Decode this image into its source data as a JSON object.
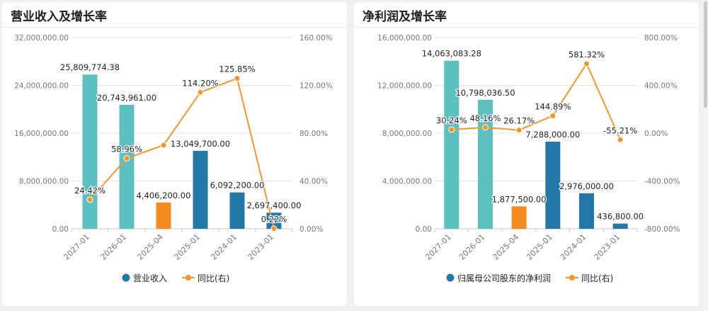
{
  "colors": {
    "bar_main": "#2378a8",
    "bar_teal": "#5cc0c0",
    "bar_orange": "#f58b1f",
    "line": "#f0962e"
  },
  "chart_data": [
    {
      "type": "bar",
      "title": "营业收入及增长率",
      "categories": [
        "2027-01",
        "2026-01",
        "2025-04",
        "2025-01",
        "2024-01",
        "2023-01"
      ],
      "bar_colors": [
        "#5cc0c0",
        "#5cc0c0",
        "#f58b1f",
        "#2378a8",
        "#2378a8",
        "#2378a8"
      ],
      "series": [
        {
          "name": "营业收入",
          "type": "bar",
          "axis": "left",
          "values": [
            25809774.38,
            20743961.0,
            4406200.0,
            13049700.0,
            6092200.0,
            2697400.0
          ],
          "labels": [
            "25,809,774.38",
            "20,743,961.00",
            "4,406,200.00",
            "13,049,700.00",
            "6,092,200.00",
            "2,697,400.00"
          ]
        },
        {
          "name": "同比(右)",
          "type": "line",
          "axis": "right",
          "values": [
            24.42,
            58.96,
            70.0,
            114.2,
            125.85,
            0.22
          ],
          "labels": [
            "24.42%",
            "58.96%",
            "",
            "114.20%",
            "125.85%",
            "0.22%"
          ]
        }
      ],
      "ylim_left": [
        0,
        32000000
      ],
      "yticks_left": [
        "0.00",
        "8,000,000.00",
        "16,000,000.00",
        "24,000,000.00",
        "32,000,000.00"
      ],
      "ylim_right": [
        0,
        160
      ],
      "yticks_right": [
        "0.00%",
        "40.00%",
        "80.00%",
        "120.00%",
        "160.00%"
      ],
      "legend": [
        "营业收入",
        "同比(右)"
      ],
      "legend_position": "bottom",
      "grid": true
    },
    {
      "type": "bar",
      "title": "净利润及增长率",
      "categories": [
        "2027-01",
        "2026-01",
        "2025-04",
        "2025-01",
        "2024-01",
        "2023-01"
      ],
      "bar_colors": [
        "#5cc0c0",
        "#5cc0c0",
        "#f58b1f",
        "#2378a8",
        "#2378a8",
        "#2378a8"
      ],
      "series": [
        {
          "name": "归属母公司股东的净利润",
          "type": "bar",
          "axis": "left",
          "values": [
            14063083.28,
            10798036.5,
            1877500.0,
            7288000.0,
            2976000.0,
            436800.0
          ],
          "labels": [
            "14,063,083.28",
            "10,798,036.50",
            "1,877,500.00",
            "7,288,000.00",
            "2,976,000.00",
            "436,800.00"
          ]
        },
        {
          "name": "同比(右)",
          "type": "line",
          "axis": "right",
          "values": [
            30.24,
            48.16,
            26.17,
            144.89,
            581.32,
            -55.21
          ],
          "labels": [
            "30.24%",
            "48.16%",
            "26.17%",
            "144.89%",
            "581.32%",
            "-55.21%"
          ]
        }
      ],
      "ylim_left": [
        0,
        16000000
      ],
      "yticks_left": [
        "0.00",
        "4,000,000.00",
        "8,000,000.00",
        "12,000,000.00",
        "16,000,000.00"
      ],
      "ylim_right": [
        -800,
        800
      ],
      "yticks_right": [
        "-800.00%",
        "-400.00%",
        "0.00%",
        "400.00%",
        "800.00%"
      ],
      "legend": [
        "归属母公司股东的净利润",
        "同比(右)"
      ],
      "legend_position": "bottom",
      "grid": true
    }
  ]
}
